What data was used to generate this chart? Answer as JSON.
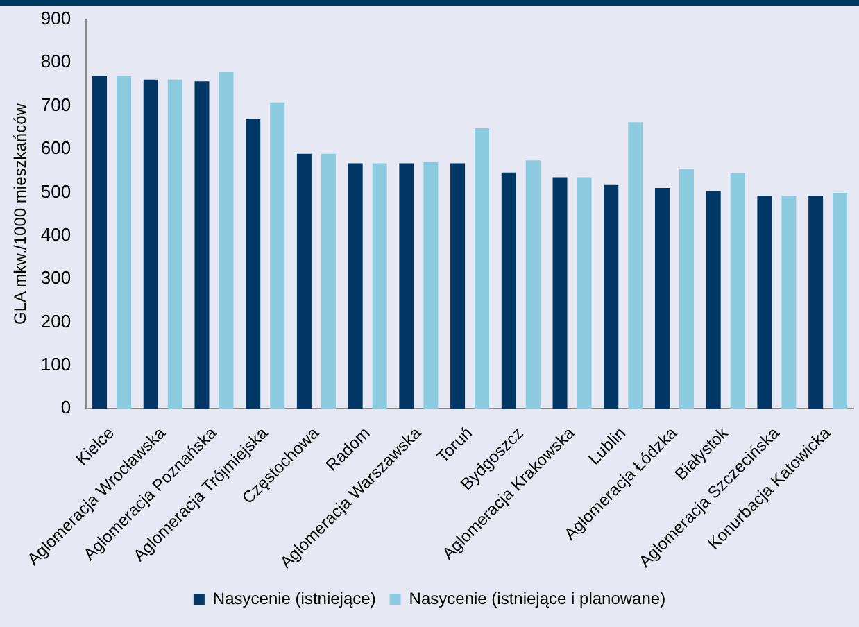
{
  "chart_data": {
    "type": "bar",
    "ylabel": "GLA mkw./1000 mieszkańców",
    "categories": [
      "Kielce",
      "Aglomeracja Wrocławska",
      "Aglomeracja Poznańska",
      "Aglomeracja Trójmiejska",
      "Częstochowa",
      "Radom",
      "Aglomeracja Warszawska",
      "Toruń",
      "Bydgoszcz",
      "Aglomeracja Krakowska",
      "Lublin",
      "Aglomeracja Łódzka",
      "Białystok",
      "Aglomeracja Szczecińska",
      "Konurbacja Katowicka"
    ],
    "series": [
      {
        "name": "Nasycenie (istniejące)",
        "color": "#003764",
        "values": [
          769,
          761,
          757,
          669,
          589,
          567,
          567,
          567,
          546,
          535,
          517,
          510,
          503,
          492,
          492
        ]
      },
      {
        "name": "Nasycenie (istniejące i planowane)",
        "color": "#8ccbdf",
        "values": [
          769,
          761,
          778,
          708,
          589,
          567,
          570,
          648,
          574,
          535,
          662,
          555,
          545,
          492,
          499
        ]
      }
    ],
    "ylim": [
      0,
      900
    ],
    "yticks": [
      0,
      100,
      200,
      300,
      400,
      500,
      600,
      700,
      800,
      900
    ],
    "grid": false,
    "legend": "bottom"
  }
}
